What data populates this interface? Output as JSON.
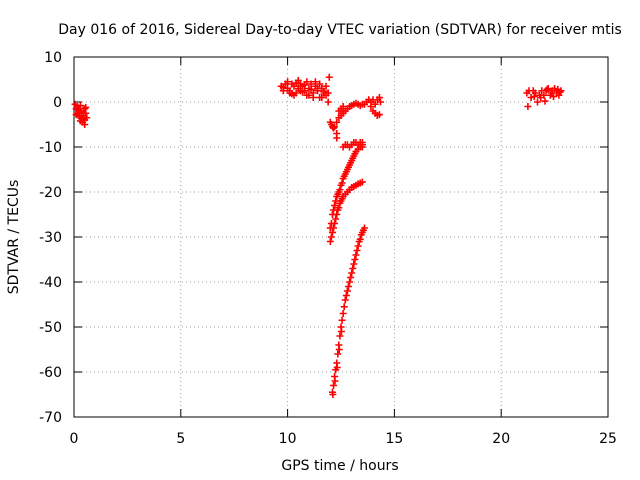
{
  "chart_data": {
    "type": "scatter",
    "title": "Day 016 of 2016, Sidereal Day-to-day VTEC variation (SDTVAR) for receiver mtis",
    "xlabel": "GPS time / hours",
    "ylabel": "SDTVAR / TECUs",
    "xlim": [
      0,
      25
    ],
    "ylim": [
      -70,
      10
    ],
    "x_ticks": [
      0,
      5,
      10,
      15,
      20,
      25
    ],
    "y_ticks": [
      -70,
      -60,
      -50,
      -40,
      -30,
      -20,
      -10,
      0,
      10
    ],
    "grid": true,
    "legend": "none",
    "marker": "plus",
    "color": "#ff0000",
    "series": [
      {
        "x": [
          0.05,
          0.1,
          0.15,
          0.2,
          0.25,
          0.3,
          0.35,
          0.4,
          0.45,
          0.5,
          0.55,
          0.6,
          0.2,
          0.3,
          0.4,
          0.5,
          0.3,
          0.45,
          0.1,
          0.35,
          0.5,
          0.25,
          0.15,
          0.55
        ],
        "y": [
          -0.5,
          -1.5,
          -2.5,
          -3,
          -2,
          -1.5,
          -3.5,
          -4.5,
          -2.5,
          -1.5,
          -2.5,
          -3.5,
          -1.8,
          -4.2,
          -3.8,
          -5,
          -0.8,
          -3,
          -2.8,
          -2.2,
          -4,
          -3.2,
          -1,
          -1.2
        ]
      },
      {
        "x": [
          9.7,
          9.8,
          9.9,
          10.0,
          10.1,
          10.2,
          10.3,
          10.4,
          10.5,
          10.6,
          10.7,
          10.8,
          10.9,
          11.0,
          11.1,
          11.2,
          11.3,
          11.4,
          11.5,
          11.6,
          11.7,
          11.8,
          11.9,
          10.0,
          10.3,
          10.6,
          10.9,
          11.2,
          11.5,
          11.8,
          9.8,
          10.1,
          10.4,
          10.7,
          11.0,
          11.3,
          11.6,
          11.9,
          10.2,
          10.8,
          11.4,
          10.5,
          11.1,
          11.7,
          11.95
        ],
        "y": [
          3.5,
          2.5,
          4,
          3,
          2.5,
          4,
          3.5,
          2,
          3,
          4,
          3.5,
          2.5,
          1.5,
          3,
          4,
          2,
          3.5,
          2.5,
          1,
          3,
          2,
          1.5,
          0,
          4.5,
          1.5,
          2.5,
          4.5,
          1,
          4,
          3.5,
          3.2,
          2,
          4.2,
          2.2,
          1.5,
          4.5,
          1,
          2,
          1.8,
          3.8,
          3,
          4.8,
          2.8,
          2.4,
          5.5
        ]
      },
      {
        "x": [
          12.0,
          12.05,
          12.1,
          12.15,
          12.2,
          12.3,
          12.4,
          12.5,
          12.6,
          12.7,
          12.8,
          12.9,
          13.0,
          13.1,
          13.2,
          13.3,
          13.4,
          13.5,
          13.6,
          13.7,
          13.8,
          13.9,
          14.0,
          14.1,
          14.2,
          14.3,
          14.35,
          13.9,
          14.0,
          14.1,
          14.2,
          14.3,
          12.6,
          12.5,
          12.4,
          12.3,
          12.3
        ],
        "y": [
          -4.5,
          -5,
          -5.5,
          -5.8,
          -5.5,
          -4.5,
          -3.5,
          -3,
          -2.5,
          -2,
          -1.5,
          -1,
          -0.8,
          -0.5,
          -0.3,
          -0.5,
          -0.8,
          -0.5,
          -0.5,
          0,
          0.5,
          0,
          0.5,
          -0.5,
          0.5,
          1,
          0,
          -1,
          -2,
          -2.5,
          -3,
          -2.8,
          -1,
          -1.5,
          -2,
          -7,
          -8
        ]
      },
      {
        "x": [
          12.6,
          12.7,
          12.8,
          12.9,
          13.0,
          13.1,
          13.2,
          13.3,
          13.4,
          13.5,
          13.5,
          13.5
        ],
        "y": [
          -10,
          -9.5,
          -9.5,
          -10,
          -9.5,
          -9,
          -9,
          -9.5,
          -9,
          -9.5,
          -10,
          -9
        ]
      },
      {
        "x": [
          12.0,
          12.1,
          12.2,
          12.3,
          12.4,
          12.5,
          12.6,
          12.7,
          12.8,
          12.9,
          13.0,
          13.1,
          13.2,
          13.3,
          13.4,
          13.5,
          12.05,
          12.15,
          12.25,
          12.35,
          12.45,
          12.55
        ],
        "y": [
          -31,
          -29,
          -27,
          -25,
          -23.5,
          -22,
          -21,
          -20.5,
          -20,
          -19.5,
          -19,
          -18.8,
          -18.5,
          -18.2,
          -18,
          -17.8,
          -30,
          -28,
          -26,
          -24,
          -22.5,
          -21.5
        ]
      },
      {
        "x": [
          12.0,
          12.1,
          12.2,
          12.3,
          12.4,
          12.5,
          12.6,
          12.7,
          12.8,
          12.9,
          13.0,
          13.1,
          13.2,
          13.3,
          13.4,
          13.5,
          12.05,
          12.15,
          12.25,
          12.35,
          12.45,
          12.55,
          12.65,
          12.75,
          12.85,
          12.95,
          13.05,
          13.15
        ],
        "y": [
          -28,
          -25,
          -23,
          -21,
          -20,
          -18.5,
          -17,
          -16,
          -15,
          -14,
          -13,
          -12,
          -11,
          -10.5,
          -10,
          -9.5,
          -27,
          -24,
          -22,
          -20.5,
          -19.5,
          -18,
          -16.5,
          -15.5,
          -14.5,
          -13.5,
          -12.5,
          -11.5
        ]
      },
      {
        "x": [
          12.1,
          12.15,
          12.2,
          12.25,
          12.3,
          12.35,
          12.4,
          12.45,
          12.5,
          12.55,
          12.6,
          12.65,
          12.7,
          12.75,
          12.8,
          12.85,
          12.9,
          12.95,
          13.0,
          13.05,
          13.1,
          13.15,
          13.2,
          13.25,
          13.3,
          13.35,
          13.4,
          13.45,
          13.5,
          13.55,
          13.6,
          12.12,
          12.22,
          12.32,
          12.42,
          12.52
        ],
        "y": [
          -64.5,
          -63,
          -61,
          -59.5,
          -58,
          -56,
          -54,
          -52,
          -50,
          -48.5,
          -47,
          -45.5,
          -44,
          -43,
          -42,
          -41,
          -40,
          -39,
          -38,
          -37,
          -36,
          -35,
          -34,
          -33,
          -32,
          -31,
          -30.5,
          -29.5,
          -29,
          -28.5,
          -28,
          -65,
          -62,
          -59,
          -55,
          -51
        ]
      },
      {
        "x": [
          21.2,
          21.3,
          21.4,
          21.5,
          21.6,
          21.7,
          21.8,
          21.9,
          22.0,
          22.1,
          22.2,
          22.3,
          22.4,
          22.5,
          22.6,
          22.7,
          22.8,
          21.25,
          21.55,
          21.85,
          22.15,
          22.45,
          22.75,
          22.05,
          22.35,
          22.65
        ],
        "y": [
          2,
          2.5,
          1,
          2.5,
          2,
          0,
          1.5,
          2.5,
          1.5,
          2.5,
          3,
          1.5,
          2.5,
          3,
          2,
          1.5,
          2.5,
          -1,
          1.2,
          1,
          2.8,
          1.2,
          2.2,
          0.2,
          2,
          2.8
        ]
      }
    ]
  }
}
